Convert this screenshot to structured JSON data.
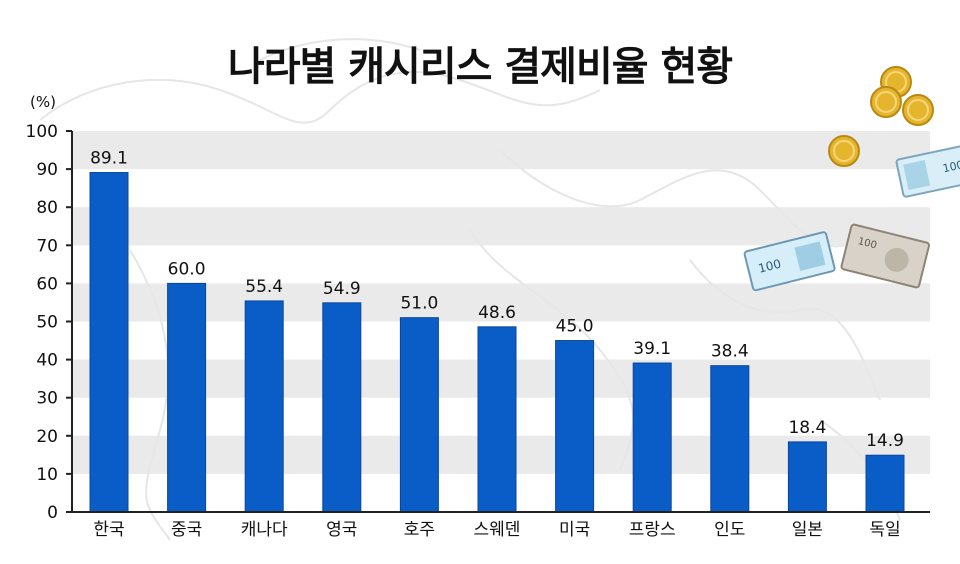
{
  "title": "나라별 캐시리스 결제비율 현황",
  "chart_data": {
    "type": "bar",
    "title": "나라별 캐시리스 결제비율 현황",
    "unit_label": "(%)",
    "xlabel": "",
    "ylabel": "",
    "ylim": [
      0,
      100
    ],
    "yticks": [
      0,
      10,
      20,
      30,
      40,
      50,
      60,
      70,
      80,
      90,
      100
    ],
    "grid": "alternating horizontal bands",
    "categories": [
      "한국",
      "중국",
      "캐나다",
      "영국",
      "호주",
      "스웨덴",
      "미국",
      "프랑스",
      "인도",
      "일본",
      "독일"
    ],
    "values": [
      89.1,
      60.0,
      55.4,
      54.9,
      51.0,
      48.6,
      45.0,
      39.1,
      38.4,
      18.4,
      14.9
    ],
    "value_labels": [
      "89.1",
      "60.0",
      "55.4",
      "54.9",
      "51.0",
      "48.6",
      "45.0",
      "39.1",
      "38.4",
      "18.4",
      "14.9"
    ]
  },
  "colors": {
    "bar": "#0a5cc6",
    "bar_edge": "#0846a0",
    "band": "#e6e6e6",
    "axis": "#222222",
    "map": "#e9e9e9"
  },
  "decorations": {
    "background": "world-map",
    "coins": "coin-icon",
    "banknotes": "banknote-icon",
    "banknote_text": [
      "100",
      "100",
      "100"
    ]
  }
}
